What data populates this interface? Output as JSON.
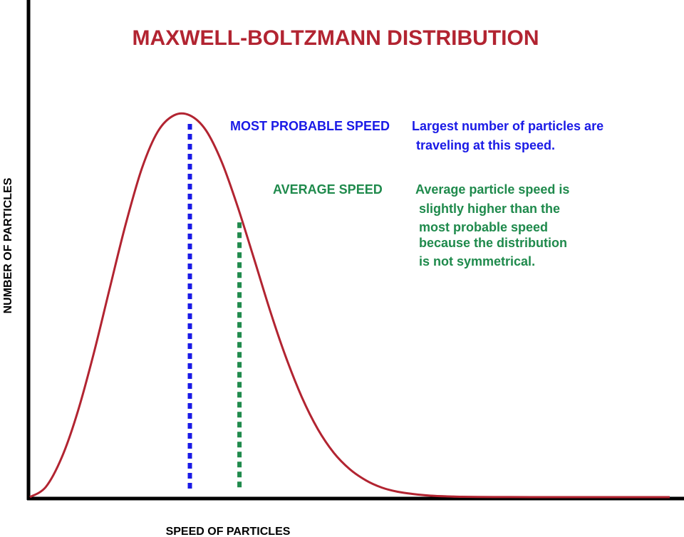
{
  "chart_data": {
    "type": "line",
    "title": "MAXWELL-BOLTZMANN DISTRIBUTION",
    "xlabel": "SPEED OF PARTICLES",
    "ylabel": "NUMBER OF PARTICLES",
    "grid": false,
    "legend": "none",
    "colors": {
      "title": "#b22431",
      "curve": "#b22431",
      "most_probable": "#1a1ae6",
      "average": "#1f8a4c",
      "axes": "#000000"
    },
    "series": [
      {
        "x": [
          0,
          0.1,
          0.2,
          0.3,
          0.4,
          0.5,
          0.6,
          0.7,
          0.8,
          0.9,
          1.0,
          1.1,
          1.2,
          1.3,
          1.4,
          1.5,
          1.6,
          1.7,
          1.8,
          1.9,
          2.0,
          2.1,
          2.2,
          2.3,
          2.4,
          2.5,
          2.6,
          2.7,
          2.8,
          2.9,
          3.0,
          3.2,
          3.4,
          3.6,
          3.8,
          4.0
        ],
        "y": [
          0,
          0.027,
          0.105,
          0.225,
          0.378,
          0.549,
          0.717,
          0.861,
          0.958,
          1.0,
          1.0,
          0.961,
          0.877,
          0.759,
          0.626,
          0.49,
          0.367,
          0.262,
          0.178,
          0.116,
          0.073,
          0.044,
          0.025,
          0.014,
          0.008,
          0.004,
          0.002,
          0.001,
          0.0005,
          0.0002,
          0.0001,
          0,
          0,
          0,
          0,
          0
        ]
      }
    ],
    "xlim": [
      0,
      4
    ],
    "ylim": [
      0,
      1.05
    ],
    "annotations": [
      {
        "kind": "most_probable",
        "x": 1.0,
        "label": "MOST PROBABLE SPEED",
        "description": [
          "Largest number of particles are",
          "traveling at this speed."
        ]
      },
      {
        "kind": "average",
        "x": 1.31,
        "label": "AVERAGE SPEED",
        "description": [
          "Average particle speed is",
          "slightly higher than the",
          "most probable speed",
          "because the distribution",
          "is not symmetrical."
        ]
      }
    ]
  }
}
